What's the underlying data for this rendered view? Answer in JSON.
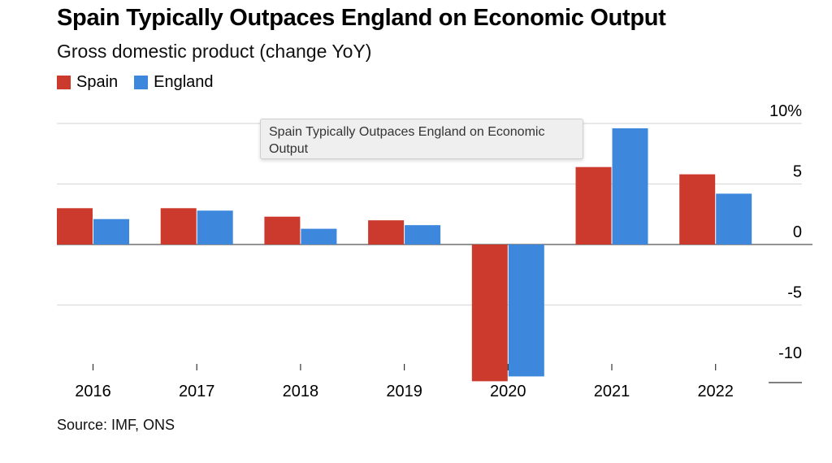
{
  "header": {
    "title": "Spain Typically Outpaces England on Economic Output",
    "subtitle": "Gross domestic product (change YoY)"
  },
  "legend": {
    "items": [
      {
        "label": "Spain",
        "color": "#cc3a2e"
      },
      {
        "label": "England",
        "color": "#3d88dc"
      }
    ]
  },
  "tooltip": {
    "text": "Spain Typically Outpaces England on Economic Output"
  },
  "footer": {
    "source": "Source: IMF, ONS"
  },
  "chart_data": {
    "type": "bar",
    "categories": [
      "2016",
      "2017",
      "2018",
      "2019",
      "2020",
      "2021",
      "2022"
    ],
    "series": [
      {
        "name": "Spain",
        "color": "#cc3a2e",
        "values": [
          3.0,
          3.0,
          2.3,
          2.0,
          -11.3,
          6.4,
          5.8
        ]
      },
      {
        "name": "England",
        "color": "#3d88dc",
        "values": [
          2.1,
          2.8,
          1.3,
          1.6,
          -10.9,
          9.6,
          4.2
        ]
      }
    ],
    "y_ticks": [
      {
        "value": 10,
        "label": "10%"
      },
      {
        "value": 5,
        "label": "5"
      },
      {
        "value": 0,
        "label": "0"
      },
      {
        "value": -5,
        "label": "-5"
      },
      {
        "value": -10,
        "label": "-10"
      }
    ],
    "ylim": [
      -11.3,
      10
    ],
    "grid": true,
    "legend_position": "top-left",
    "y_axis_side": "right"
  }
}
